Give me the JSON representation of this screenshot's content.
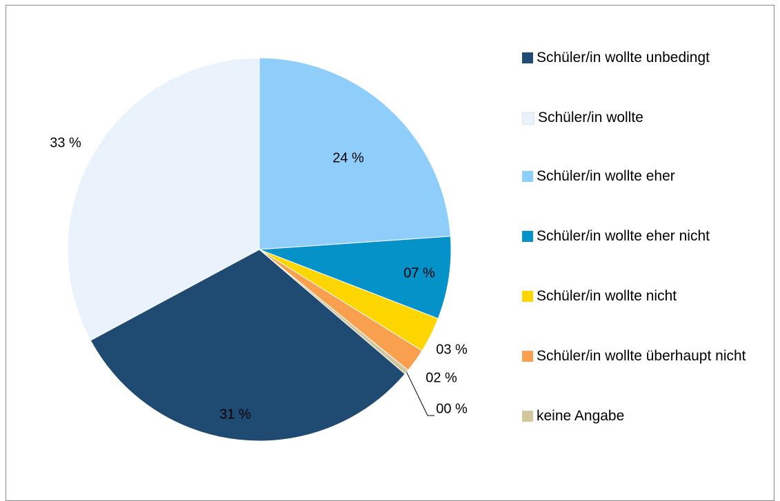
{
  "chart_data": {
    "type": "pie",
    "categories": [
      "Schüler/in wollte unbedingt",
      "Schüler/in wollte",
      "Schüler/in wollte eher",
      "Schüler/in wollte eher nicht",
      "Schüler/in wollte nicht",
      "Schüler/in wollte überhaupt nicht",
      "keine Angabe"
    ],
    "values": [
      31,
      33,
      24,
      7,
      3,
      2,
      0.4
    ],
    "value_labels": [
      "31 %",
      "33 %",
      "24 %",
      "07 %",
      "03 %",
      "02 %",
      "00 %"
    ],
    "colors": [
      "#1f4a72",
      "#eaf3fc",
      "#8fcefb",
      "#0592c9",
      "#fdd600",
      "#f9a04f",
      "#d4c69c"
    ],
    "legend": "right"
  }
}
